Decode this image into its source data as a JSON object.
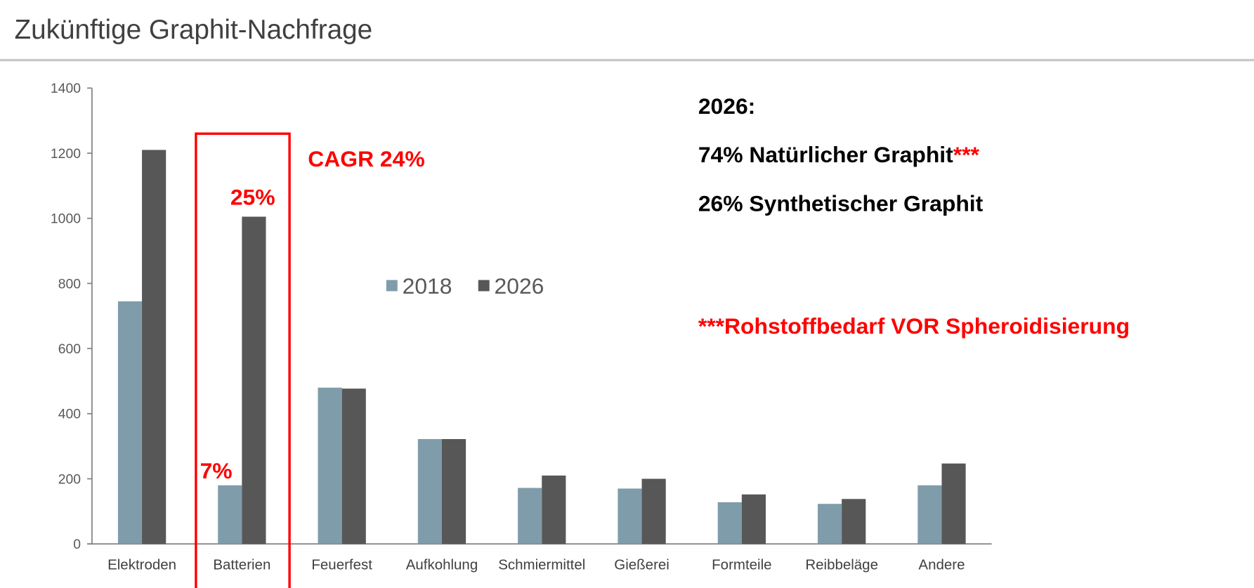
{
  "page_title": "Zukünftige Graphit-Nachfrage",
  "chart_data": {
    "type": "bar",
    "title": "",
    "xlabel": "",
    "ylabel": "",
    "ylim": [
      0,
      1400
    ],
    "yticks": [
      0,
      200,
      400,
      600,
      800,
      1000,
      1200,
      1400
    ],
    "grid": false,
    "legend_position": "center",
    "categories": [
      "Elektroden",
      "Batterien",
      "Feuerfest",
      "Aufkohlung",
      "Schmiermittel",
      "Gießerei",
      "Formteile",
      "Reibbeläge",
      "Andere"
    ],
    "series": [
      {
        "name": "2018",
        "color": "#7f9cab",
        "values": [
          745,
          180,
          480,
          322,
          172,
          170,
          128,
          123,
          180
        ]
      },
      {
        "name": "2026",
        "color": "#575757",
        "values": [
          1210,
          1005,
          477,
          322,
          210,
          200,
          152,
          138,
          247
        ]
      }
    ],
    "annotations": {
      "cagr": "CAGR 24%",
      "share_2026": "25%",
      "share_2018": "7%",
      "highlight_category": "Batterien",
      "highlight_color": "#ff0000"
    }
  },
  "notes": {
    "year": "2026:",
    "natural": "74% Natürlicher Graphit",
    "natural_mark": "***",
    "synthetic": "26% Synthetischer Graphit",
    "footnote": "***Rohstoffbedarf VOR Spheroidisierung"
  }
}
